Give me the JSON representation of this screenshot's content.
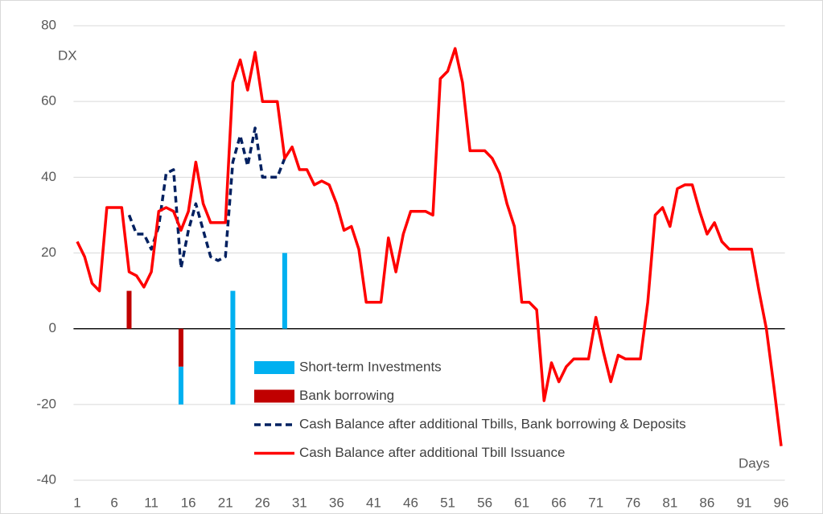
{
  "chart_data": {
    "type": "line",
    "y_label": "DX",
    "x_label": "Days",
    "x": [
      1,
      2,
      3,
      4,
      5,
      6,
      7,
      8,
      9,
      10,
      11,
      12,
      13,
      14,
      15,
      16,
      17,
      18,
      19,
      20,
      21,
      22,
      23,
      24,
      25,
      26,
      27,
      28,
      29,
      30,
      31,
      32,
      33,
      34,
      35,
      36,
      37,
      38,
      39,
      40,
      41,
      42,
      43,
      44,
      45,
      46,
      47,
      48,
      49,
      50,
      51,
      52,
      53,
      54,
      55,
      56,
      57,
      58,
      59,
      60,
      61,
      62,
      63,
      64,
      65,
      66,
      67,
      68,
      69,
      70,
      71,
      72,
      73,
      74,
      75,
      76,
      77,
      78,
      79,
      80,
      81,
      82,
      83,
      84,
      85,
      86,
      87,
      88,
      89,
      90,
      91,
      92,
      93,
      94,
      95,
      96
    ],
    "xlim": [
      0.5,
      96.5
    ],
    "xticks": [
      1,
      6,
      11,
      16,
      21,
      26,
      31,
      36,
      41,
      46,
      51,
      56,
      61,
      66,
      71,
      76,
      81,
      86,
      91,
      96
    ],
    "ylim": [
      -40,
      80
    ],
    "yticks": [
      -40,
      -20,
      0,
      20,
      40,
      60,
      80
    ],
    "grid": true,
    "series": [
      {
        "name": "Short-term Investments",
        "type": "bar",
        "color": "#00b0f0",
        "bars": [
          {
            "x": 15,
            "low": -20,
            "high": -10
          },
          {
            "x": 22,
            "low": -20,
            "high": 10
          },
          {
            "x": 29,
            "low": 0,
            "high": 20
          }
        ]
      },
      {
        "name": "Bank borrowing",
        "type": "bar",
        "color": "#c00000",
        "bars": [
          {
            "x": 8,
            "low": 0,
            "high": 10
          },
          {
            "x": 15,
            "low": -10,
            "high": 0
          }
        ]
      },
      {
        "name": "Cash Balance after additional Tbills, Bank borrowing & Deposits",
        "type": "line",
        "dashed": true,
        "color": "#002060",
        "values": [
          null,
          null,
          null,
          null,
          null,
          null,
          null,
          30,
          25,
          25,
          21,
          27,
          41,
          42,
          16,
          26,
          33,
          26,
          19,
          18,
          19,
          44,
          51,
          43,
          53,
          40,
          40,
          40,
          45,
          null,
          null,
          null,
          null,
          null,
          null,
          null,
          null,
          null,
          null,
          null,
          null,
          null,
          null,
          null,
          null,
          null,
          null,
          null,
          null,
          null,
          null,
          null,
          null,
          null,
          null,
          null,
          null,
          null,
          null,
          null,
          null,
          null,
          null,
          null,
          null,
          null,
          null,
          null,
          null,
          null,
          null,
          null,
          null,
          null,
          null,
          null,
          null,
          null,
          null,
          null,
          null,
          null,
          null,
          null,
          null,
          null,
          null,
          null,
          null,
          null,
          null,
          null,
          null,
          null,
          null,
          null
        ]
      },
      {
        "name": "Cash Balance after additional Tbill Issuance",
        "type": "line",
        "dashed": false,
        "color": "#ff0000",
        "values": [
          23,
          19,
          12,
          10,
          32,
          32,
          32,
          15,
          14,
          11,
          15,
          31,
          32,
          31,
          26,
          31,
          44,
          33,
          28,
          28,
          28,
          65,
          71,
          63,
          73,
          60,
          60,
          60,
          45,
          48,
          42,
          42,
          38,
          39,
          38,
          33,
          26,
          27,
          21,
          7,
          7,
          7,
          24,
          15,
          25,
          31,
          31,
          31,
          30,
          66,
          68,
          74,
          65,
          47,
          47,
          47,
          45,
          41,
          33,
          27,
          7,
          7,
          5,
          -19,
          -9,
          -14,
          -10,
          -8,
          -8,
          -8,
          3,
          -6,
          -14,
          -7,
          -8,
          -8,
          -8,
          7,
          30,
          32,
          27,
          37,
          38,
          38,
          31,
          25,
          28,
          23,
          21,
          21,
          21,
          21,
          10,
          0,
          -15,
          -31
        ]
      }
    ]
  }
}
